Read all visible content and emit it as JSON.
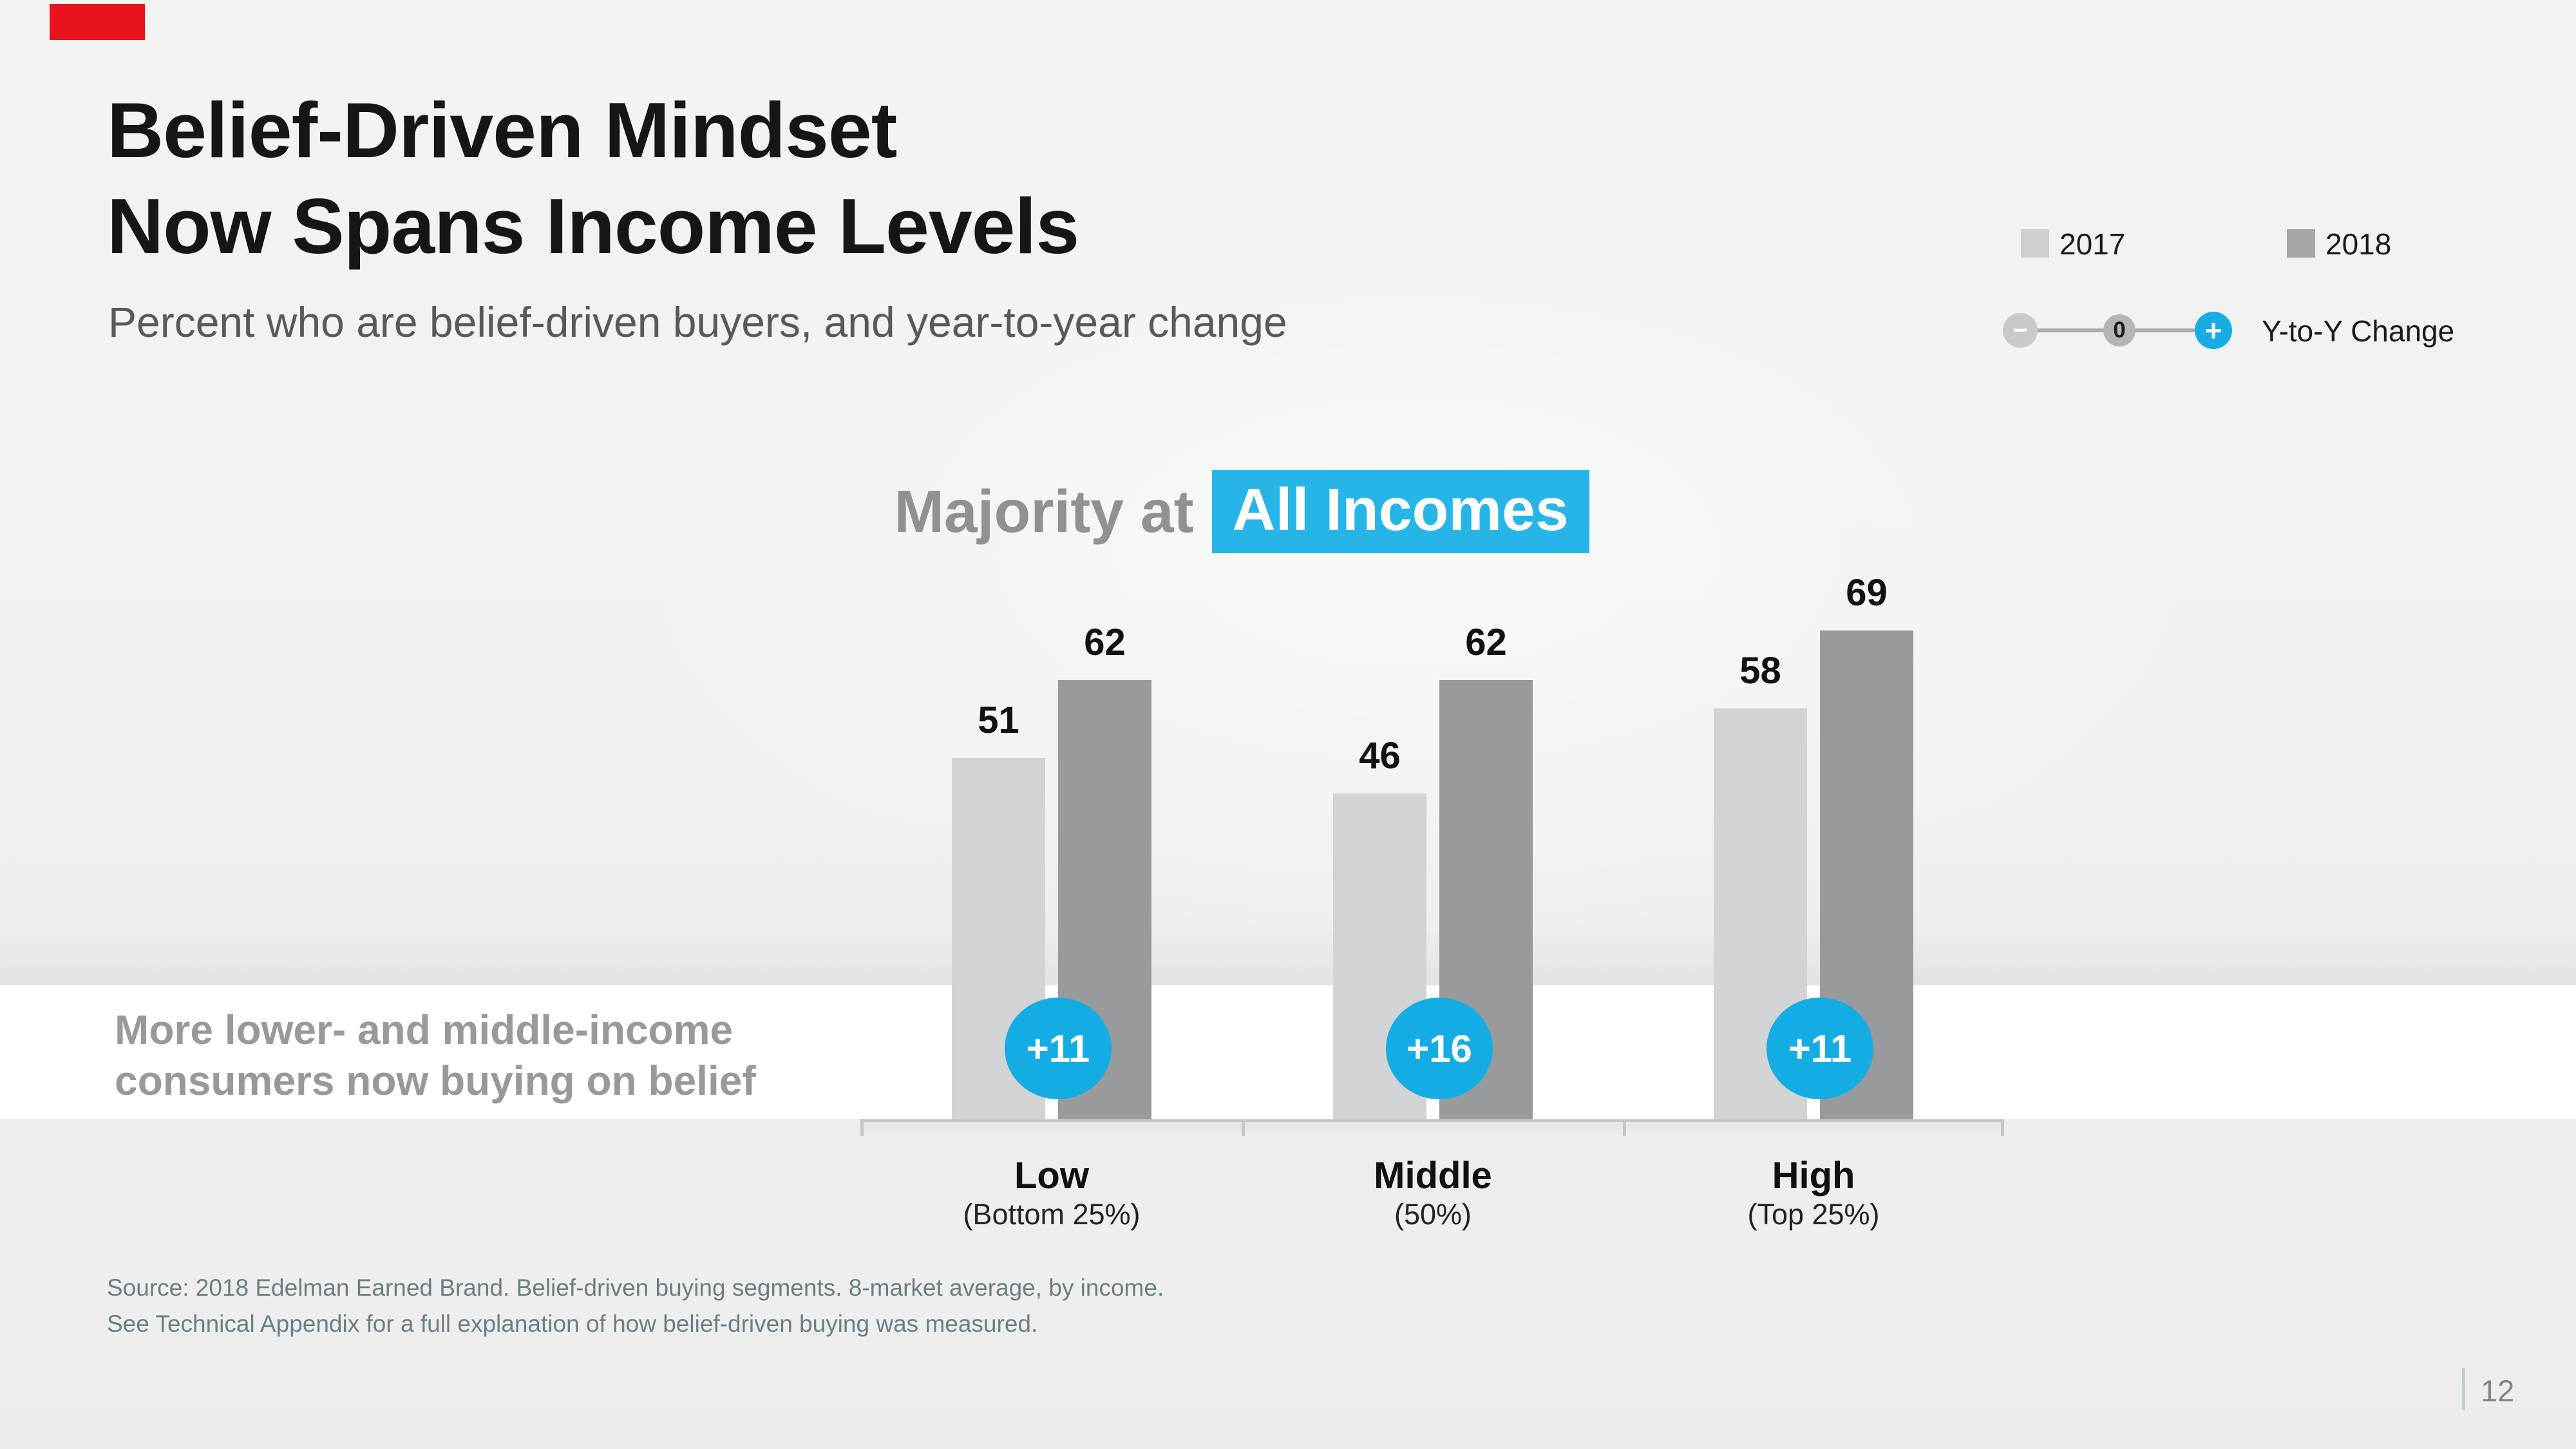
{
  "slide": {
    "accent_color": "#e8131d",
    "title_line1": "Belief-Driven Mindset",
    "title_line2": "Now Spans Income Levels",
    "subtitle": "Percent who are belief-driven buyers, and year-to-year change",
    "side_note_line1": "More lower- and middle-income",
    "side_note_line2": "consumers now buying on belief",
    "source_line1": "Source: 2018 Edelman Earned Brand. Belief-driven buying segments. 8-market average, by income.",
    "source_line2": "See Technical Appendix for a full explanation of how belief-driven buying was measured.",
    "page_number": "12"
  },
  "legend": {
    "series": [
      {
        "label": "2017",
        "color": "#cdcfd0"
      },
      {
        "label": "2018",
        "color": "#a3a5a7"
      }
    ],
    "change": {
      "minus_glyph": "−",
      "zero_glyph": "0",
      "plus_glyph": "+",
      "label": "Y-to-Y Change",
      "minus_color": "#c8c9cb",
      "zero_color": "#b3b5b7",
      "plus_color": "#17ace3"
    }
  },
  "chart_heading": {
    "prefix": "Majority at",
    "highlight": "All Incomes",
    "highlight_color": "#27b5e8"
  },
  "chart_data": {
    "type": "bar",
    "title": "Majority at All Incomes",
    "categories": [
      "Low",
      "Middle",
      "High"
    ],
    "category_sublabels": [
      "(Bottom 25%)",
      "(50%)",
      "(Top 25%)"
    ],
    "series": [
      {
        "name": "2017",
        "color": "#d2d3d4",
        "values": [
          51,
          46,
          58
        ]
      },
      {
        "name": "2018",
        "color": "#999a9c",
        "values": [
          62,
          62,
          69
        ]
      }
    ],
    "change_badges": {
      "color": "#14ade3",
      "values": [
        "+11",
        "+16",
        "+11"
      ]
    },
    "ylim": [
      0,
      80
    ],
    "unit": "percent",
    "grid": false,
    "legend_position": "top-right",
    "value_labels": "above-bars"
  }
}
